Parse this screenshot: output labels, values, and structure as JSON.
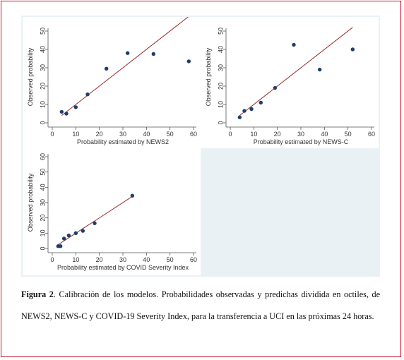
{
  "caption": {
    "label": "Figura 2",
    "text": ". Calibración de los modelos. Probabilidades observadas y predichas dividida en octiles, de NEWS2, NEWS-C y COVID-19 Severity Index, para la transferencia a UCI en las próximas 24 horas."
  },
  "colors": {
    "frame": "#c8102e",
    "figure_background": "#eaf1f5",
    "points": "#1f3e6b",
    "reference_line": "#9b2d30"
  },
  "chart_data": [
    {
      "type": "scatter",
      "xlabel": "Probability estimated by NEWS2",
      "ylabel": "Observed probability",
      "xlim": [
        0,
        60
      ],
      "ylim": [
        0,
        50
      ],
      "xticks": [
        0,
        10,
        20,
        30,
        40,
        50,
        60
      ],
      "yticks": [
        0,
        10,
        20,
        30,
        40,
        50
      ],
      "x": [
        4,
        6,
        10,
        15,
        23,
        32,
        43,
        58
      ],
      "y": [
        6,
        5,
        8.5,
        15.5,
        29.5,
        38,
        37.5,
        33.5
      ],
      "reference_line": [
        [
          4,
          4
        ],
        [
          58,
          58
        ]
      ]
    },
    {
      "type": "scatter",
      "xlabel": "Probability estimated by NEWS-C",
      "ylabel": "Observed probability",
      "xlim": [
        0,
        60
      ],
      "ylim": [
        0,
        50
      ],
      "xticks": [
        0,
        10,
        20,
        30,
        40,
        50,
        60
      ],
      "yticks": [
        0,
        10,
        20,
        30,
        40,
        50
      ],
      "x": [
        4,
        6,
        9,
        13,
        19,
        27,
        38,
        52
      ],
      "y": [
        3,
        6.5,
        7.5,
        11,
        19,
        42.5,
        29,
        40
      ],
      "reference_line": [
        [
          4,
          4
        ],
        [
          52,
          52
        ]
      ]
    },
    {
      "type": "scatter",
      "xlabel": "Probability estimated by COVID Severity Index",
      "ylabel": "Observed probability",
      "xlim": [
        0,
        60
      ],
      "ylim": [
        0,
        60
      ],
      "xticks": [
        0,
        10,
        20,
        30,
        40,
        50,
        60
      ],
      "yticks": [
        0,
        10,
        20,
        30,
        40,
        50,
        60
      ],
      "x": [
        2.5,
        3.5,
        5,
        7,
        10,
        13,
        18,
        34
      ],
      "y": [
        1.5,
        1.5,
        6.5,
        8.5,
        10,
        11.5,
        16.5,
        34.5
      ],
      "reference_line": [
        [
          2,
          2
        ],
        [
          34,
          34
        ]
      ]
    }
  ]
}
